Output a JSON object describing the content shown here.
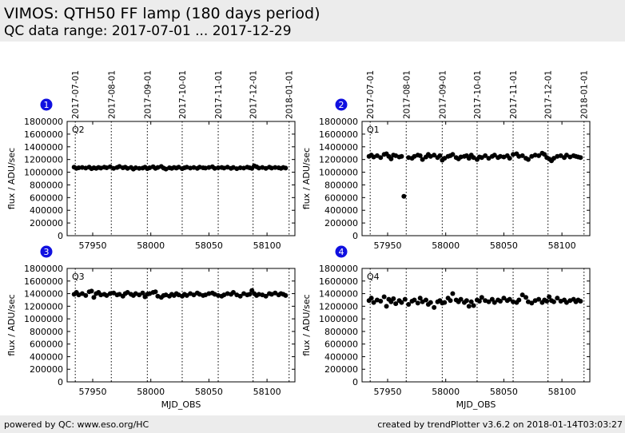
{
  "header": {
    "title": "VIMOS: QTH50 FF lamp (180 days period)",
    "subtitle": "QC data range: 2017-07-01 ... 2017-12-29"
  },
  "footer": {
    "left": "powered by QC: www.eso.org/HC",
    "right": "created by trendPlotter v3.6.2 on 2018-01-14T03:03:27"
  },
  "colors": {
    "badge": "#1010e0",
    "points": "#000000",
    "band": "#ececec"
  },
  "chart_data": [
    {
      "type": "scatter",
      "badge": "1",
      "quadrant_label": "Q2",
      "ylabel": "flux / ADU/sec",
      "xlabel": "",
      "xlim": [
        57928,
        58124
      ],
      "ylim": [
        0,
        1800000
      ],
      "x_ticks": [
        57950,
        58000,
        58050,
        58100
      ],
      "y_ticks": [
        0,
        200000,
        400000,
        600000,
        800000,
        1000000,
        1200000,
        1400000,
        1600000,
        1800000
      ],
      "date_ticks": [
        "2017-07-01",
        "2017-08-01",
        "2017-09-01",
        "2017-10-01",
        "2017-11-01",
        "2017-12-01",
        "2018-01-01"
      ],
      "date_tick_mjd": [
        57935,
        57966,
        57997,
        58027,
        58058,
        58088,
        58119
      ],
      "series": [
        {
          "x": [
            57934,
            57936,
            57938,
            57941,
            57944,
            57947,
            57949,
            57951,
            57953,
            57955,
            57957,
            57960,
            57962,
            57965,
            57968,
            57971,
            57973,
            57976,
            57978,
            57980,
            57983,
            57985,
            57987,
            57990,
            57993,
            57995,
            57997,
            57999,
            58002,
            58004,
            58006,
            58009,
            58011,
            58013,
            58016,
            58018,
            58020,
            58022,
            58024,
            58027,
            58029,
            58031,
            58034,
            58037,
            58040,
            58042,
            58045,
            58047,
            58050,
            58053,
            58055,
            58058,
            58061,
            58063,
            58066,
            58069,
            58071,
            58074,
            58077,
            58080,
            58083,
            58085,
            58087,
            58089,
            58091,
            58093,
            58096,
            58099,
            58102,
            58104,
            58107,
            58110,
            58112,
            58114,
            58116
          ],
          "y": [
            1080000,
            1060000,
            1070000,
            1075000,
            1065000,
            1080000,
            1055000,
            1070000,
            1060000,
            1075000,
            1065000,
            1080000,
            1070000,
            1085000,
            1060000,
            1075000,
            1090000,
            1070000,
            1080000,
            1060000,
            1075000,
            1050000,
            1070000,
            1060000,
            1065000,
            1080000,
            1055000,
            1070000,
            1085000,
            1060000,
            1075000,
            1090000,
            1065000,
            1050000,
            1070000,
            1060000,
            1075000,
            1065000,
            1080000,
            1055000,
            1070000,
            1080000,
            1065000,
            1075000,
            1060000,
            1080000,
            1070000,
            1065000,
            1075000,
            1085000,
            1060000,
            1070000,
            1075000,
            1065000,
            1080000,
            1060000,
            1075000,
            1055000,
            1070000,
            1065000,
            1080000,
            1070000,
            1060000,
            1100000,
            1085000,
            1065000,
            1075000,
            1060000,
            1080000,
            1065000,
            1075000,
            1070000,
            1060000,
            1075000,
            1065000
          ]
        }
      ]
    },
    {
      "type": "scatter",
      "badge": "2",
      "quadrant_label": "Q1",
      "ylabel": "flux / ADU/sec",
      "xlabel": "",
      "xlim": [
        57928,
        58124
      ],
      "ylim": [
        0,
        1800000
      ],
      "x_ticks": [
        57950,
        58000,
        58050,
        58100
      ],
      "y_ticks": [
        0,
        200000,
        400000,
        600000,
        800000,
        1000000,
        1200000,
        1400000,
        1600000,
        1800000
      ],
      "date_ticks": [
        "2017-07-01",
        "2017-08-01",
        "2017-09-01",
        "2017-10-01",
        "2017-11-01",
        "2017-12-01",
        "2018-01-01"
      ],
      "date_tick_mjd": [
        57935,
        57966,
        57997,
        58027,
        58058,
        58088,
        58119
      ],
      "series": [
        {
          "x": [
            57934,
            57936,
            57938,
            57941,
            57944,
            57947,
            57949,
            57951,
            57953,
            57955,
            57957,
            57960,
            57962,
            57964,
            57968,
            57971,
            57973,
            57976,
            57978,
            57980,
            57983,
            57985,
            57987,
            57990,
            57993,
            57995,
            57997,
            57999,
            58002,
            58004,
            58006,
            58009,
            58011,
            58013,
            58016,
            58018,
            58020,
            58022,
            58024,
            58027,
            58029,
            58031,
            58034,
            58037,
            58040,
            58042,
            58045,
            58047,
            58050,
            58053,
            58055,
            58058,
            58061,
            58063,
            58066,
            58069,
            58071,
            58074,
            58077,
            58080,
            58083,
            58085,
            58087,
            58089,
            58091,
            58093,
            58096,
            58099,
            58102,
            58104,
            58107,
            58110,
            58112,
            58114,
            58116
          ],
          "y": [
            1250000,
            1270000,
            1240000,
            1260000,
            1230000,
            1280000,
            1290000,
            1250000,
            1210000,
            1270000,
            1260000,
            1240000,
            1250000,
            620000,
            1230000,
            1220000,
            1250000,
            1270000,
            1260000,
            1200000,
            1240000,
            1280000,
            1250000,
            1270000,
            1230000,
            1260000,
            1190000,
            1220000,
            1250000,
            1260000,
            1280000,
            1230000,
            1210000,
            1240000,
            1250000,
            1260000,
            1220000,
            1270000,
            1230000,
            1200000,
            1240000,
            1230000,
            1260000,
            1220000,
            1250000,
            1270000,
            1230000,
            1250000,
            1240000,
            1260000,
            1220000,
            1280000,
            1290000,
            1250000,
            1260000,
            1220000,
            1200000,
            1250000,
            1270000,
            1260000,
            1300000,
            1280000,
            1230000,
            1210000,
            1180000,
            1220000,
            1250000,
            1260000,
            1230000,
            1270000,
            1240000,
            1260000,
            1250000,
            1240000,
            1230000
          ]
        }
      ]
    },
    {
      "type": "scatter",
      "badge": "3",
      "quadrant_label": "Q3",
      "ylabel": "flux / ADU/sec",
      "xlabel": "MJD_OBS",
      "xlim": [
        57928,
        58124
      ],
      "ylim": [
        0,
        1800000
      ],
      "x_ticks": [
        57950,
        58000,
        58050,
        58100
      ],
      "y_ticks": [
        0,
        200000,
        400000,
        600000,
        800000,
        1000000,
        1200000,
        1400000,
        1600000,
        1800000
      ],
      "date_ticks": [],
      "date_tick_mjd": [
        57935,
        57966,
        57997,
        58027,
        58058,
        58088,
        58119
      ],
      "series": [
        {
          "x": [
            57934,
            57936,
            57938,
            57941,
            57944,
            57947,
            57949,
            57951,
            57953,
            57955,
            57957,
            57960,
            57962,
            57965,
            57968,
            57971,
            57973,
            57976,
            57978,
            57980,
            57983,
            57985,
            57987,
            57990,
            57993,
            57995,
            57997,
            57999,
            58002,
            58004,
            58006,
            58009,
            58011,
            58013,
            58016,
            58018,
            58020,
            58022,
            58024,
            58027,
            58029,
            58031,
            58034,
            58037,
            58040,
            58042,
            58045,
            58047,
            58050,
            58053,
            58055,
            58058,
            58061,
            58063,
            58066,
            58069,
            58071,
            58074,
            58077,
            58080,
            58083,
            58085,
            58087,
            58089,
            58091,
            58093,
            58096,
            58099,
            58102,
            58104,
            58107,
            58110,
            58112,
            58114,
            58116
          ],
          "y": [
            1390000,
            1420000,
            1380000,
            1400000,
            1370000,
            1430000,
            1440000,
            1340000,
            1400000,
            1420000,
            1380000,
            1390000,
            1370000,
            1400000,
            1410000,
            1380000,
            1390000,
            1360000,
            1400000,
            1420000,
            1390000,
            1370000,
            1400000,
            1380000,
            1410000,
            1350000,
            1390000,
            1400000,
            1420000,
            1430000,
            1360000,
            1340000,
            1370000,
            1380000,
            1360000,
            1390000,
            1370000,
            1400000,
            1380000,
            1360000,
            1390000,
            1370000,
            1400000,
            1380000,
            1410000,
            1390000,
            1370000,
            1380000,
            1400000,
            1410000,
            1390000,
            1370000,
            1360000,
            1380000,
            1400000,
            1390000,
            1420000,
            1380000,
            1360000,
            1400000,
            1380000,
            1390000,
            1450000,
            1400000,
            1370000,
            1390000,
            1380000,
            1360000,
            1400000,
            1390000,
            1410000,
            1380000,
            1400000,
            1390000,
            1370000
          ]
        }
      ]
    },
    {
      "type": "scatter",
      "badge": "4",
      "quadrant_label": "Q4",
      "ylabel": "flux / ADU/sec",
      "xlabel": "MJD_OBS",
      "xlim": [
        57928,
        58124
      ],
      "ylim": [
        0,
        1800000
      ],
      "x_ticks": [
        57950,
        58000,
        58050,
        58100
      ],
      "y_ticks": [
        0,
        200000,
        400000,
        600000,
        800000,
        1000000,
        1200000,
        1400000,
        1600000,
        1800000
      ],
      "date_ticks": [],
      "date_tick_mjd": [
        57935,
        57966,
        57997,
        58027,
        58058,
        58088,
        58119
      ],
      "series": [
        {
          "x": [
            57934,
            57936,
            57938,
            57941,
            57944,
            57947,
            57949,
            57951,
            57953,
            57955,
            57957,
            57960,
            57962,
            57965,
            57968,
            57971,
            57973,
            57976,
            57978,
            57980,
            57983,
            57985,
            57987,
            57990,
            57993,
            57995,
            57997,
            57999,
            58002,
            58004,
            58006,
            58009,
            58011,
            58013,
            58016,
            58018,
            58020,
            58022,
            58024,
            58027,
            58029,
            58031,
            58034,
            58037,
            58040,
            58042,
            58045,
            58047,
            58050,
            58053,
            58055,
            58058,
            58061,
            58063,
            58066,
            58069,
            58071,
            58074,
            58077,
            58080,
            58083,
            58085,
            58087,
            58089,
            58091,
            58093,
            58096,
            58099,
            58102,
            58104,
            58107,
            58110,
            58112,
            58114,
            58116
          ],
          "y": [
            1290000,
            1330000,
            1260000,
            1300000,
            1280000,
            1350000,
            1200000,
            1310000,
            1270000,
            1320000,
            1240000,
            1290000,
            1260000,
            1310000,
            1230000,
            1280000,
            1300000,
            1250000,
            1330000,
            1270000,
            1300000,
            1230000,
            1260000,
            1180000,
            1270000,
            1290000,
            1250000,
            1260000,
            1330000,
            1290000,
            1400000,
            1300000,
            1270000,
            1310000,
            1260000,
            1290000,
            1200000,
            1270000,
            1210000,
            1300000,
            1280000,
            1340000,
            1290000,
            1270000,
            1310000,
            1260000,
            1300000,
            1280000,
            1330000,
            1290000,
            1310000,
            1270000,
            1260000,
            1300000,
            1380000,
            1340000,
            1270000,
            1250000,
            1290000,
            1310000,
            1260000,
            1300000,
            1280000,
            1350000,
            1290000,
            1270000,
            1330000,
            1280000,
            1300000,
            1260000,
            1290000,
            1310000,
            1270000,
            1300000,
            1280000
          ]
        }
      ]
    }
  ]
}
